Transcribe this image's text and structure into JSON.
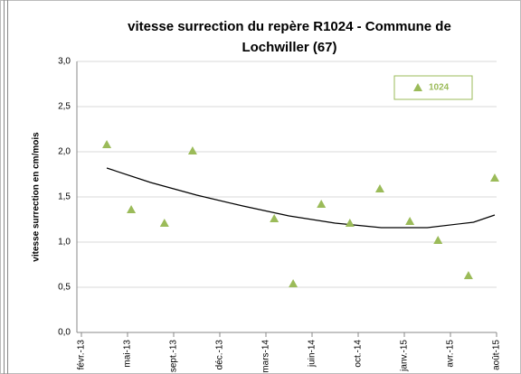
{
  "chart_data": {
    "type": "scatter",
    "title": [
      "vitesse surrection du repère R1024 - Commune de",
      "Lochwiller (67)"
    ],
    "ylabel": "vitesse surrection en cm/mois",
    "series": [
      {
        "name": "1024",
        "color": "#9bbb59",
        "x": [
          0.55,
          1.08,
          1.8,
          2.41,
          4.18,
          4.59,
          5.2,
          5.82,
          6.47,
          7.12,
          7.73,
          8.39,
          8.96
        ],
        "values": [
          2.08,
          1.36,
          1.21,
          2.01,
          1.26,
          0.54,
          1.42,
          1.21,
          1.59,
          1.23,
          1.02,
          0.63,
          1.71
        ]
      }
    ],
    "trendline": {
      "color": "#000000",
      "x": [
        0.55,
        1.5,
        2.5,
        3.5,
        4.5,
        5.5,
        6.5,
        7.5,
        8.5,
        8.96
      ],
      "values": [
        1.82,
        1.66,
        1.52,
        1.4,
        1.29,
        1.21,
        1.16,
        1.16,
        1.22,
        1.3
      ]
    },
    "xlim": [
      0,
      9
    ],
    "xticks": [
      {
        "value": 0,
        "label": "févr.-13"
      },
      {
        "value": 1,
        "label": "mai-13"
      },
      {
        "value": 2,
        "label": "sept.-13"
      },
      {
        "value": 3,
        "label": "déc.-13"
      },
      {
        "value": 4,
        "label": "mars-14"
      },
      {
        "value": 5,
        "label": "juin-14"
      },
      {
        "value": 6,
        "label": "oct.-14"
      },
      {
        "value": 7,
        "label": "janv.-15"
      },
      {
        "value": 8,
        "label": "avr.-15"
      },
      {
        "value": 9,
        "label": "août-15"
      }
    ],
    "ylim": [
      0,
      3
    ],
    "yticks": [
      {
        "value": 0,
        "label": "0,0"
      },
      {
        "value": 0.5,
        "label": "0,5"
      },
      {
        "value": 1,
        "label": "1,0"
      },
      {
        "value": 1.5,
        "label": "1,5"
      },
      {
        "value": 2,
        "label": "2,0"
      },
      {
        "value": 2.5,
        "label": "2,5"
      },
      {
        "value": 3,
        "label": "3,0"
      }
    ],
    "grid": true,
    "legend": "top-right"
  }
}
